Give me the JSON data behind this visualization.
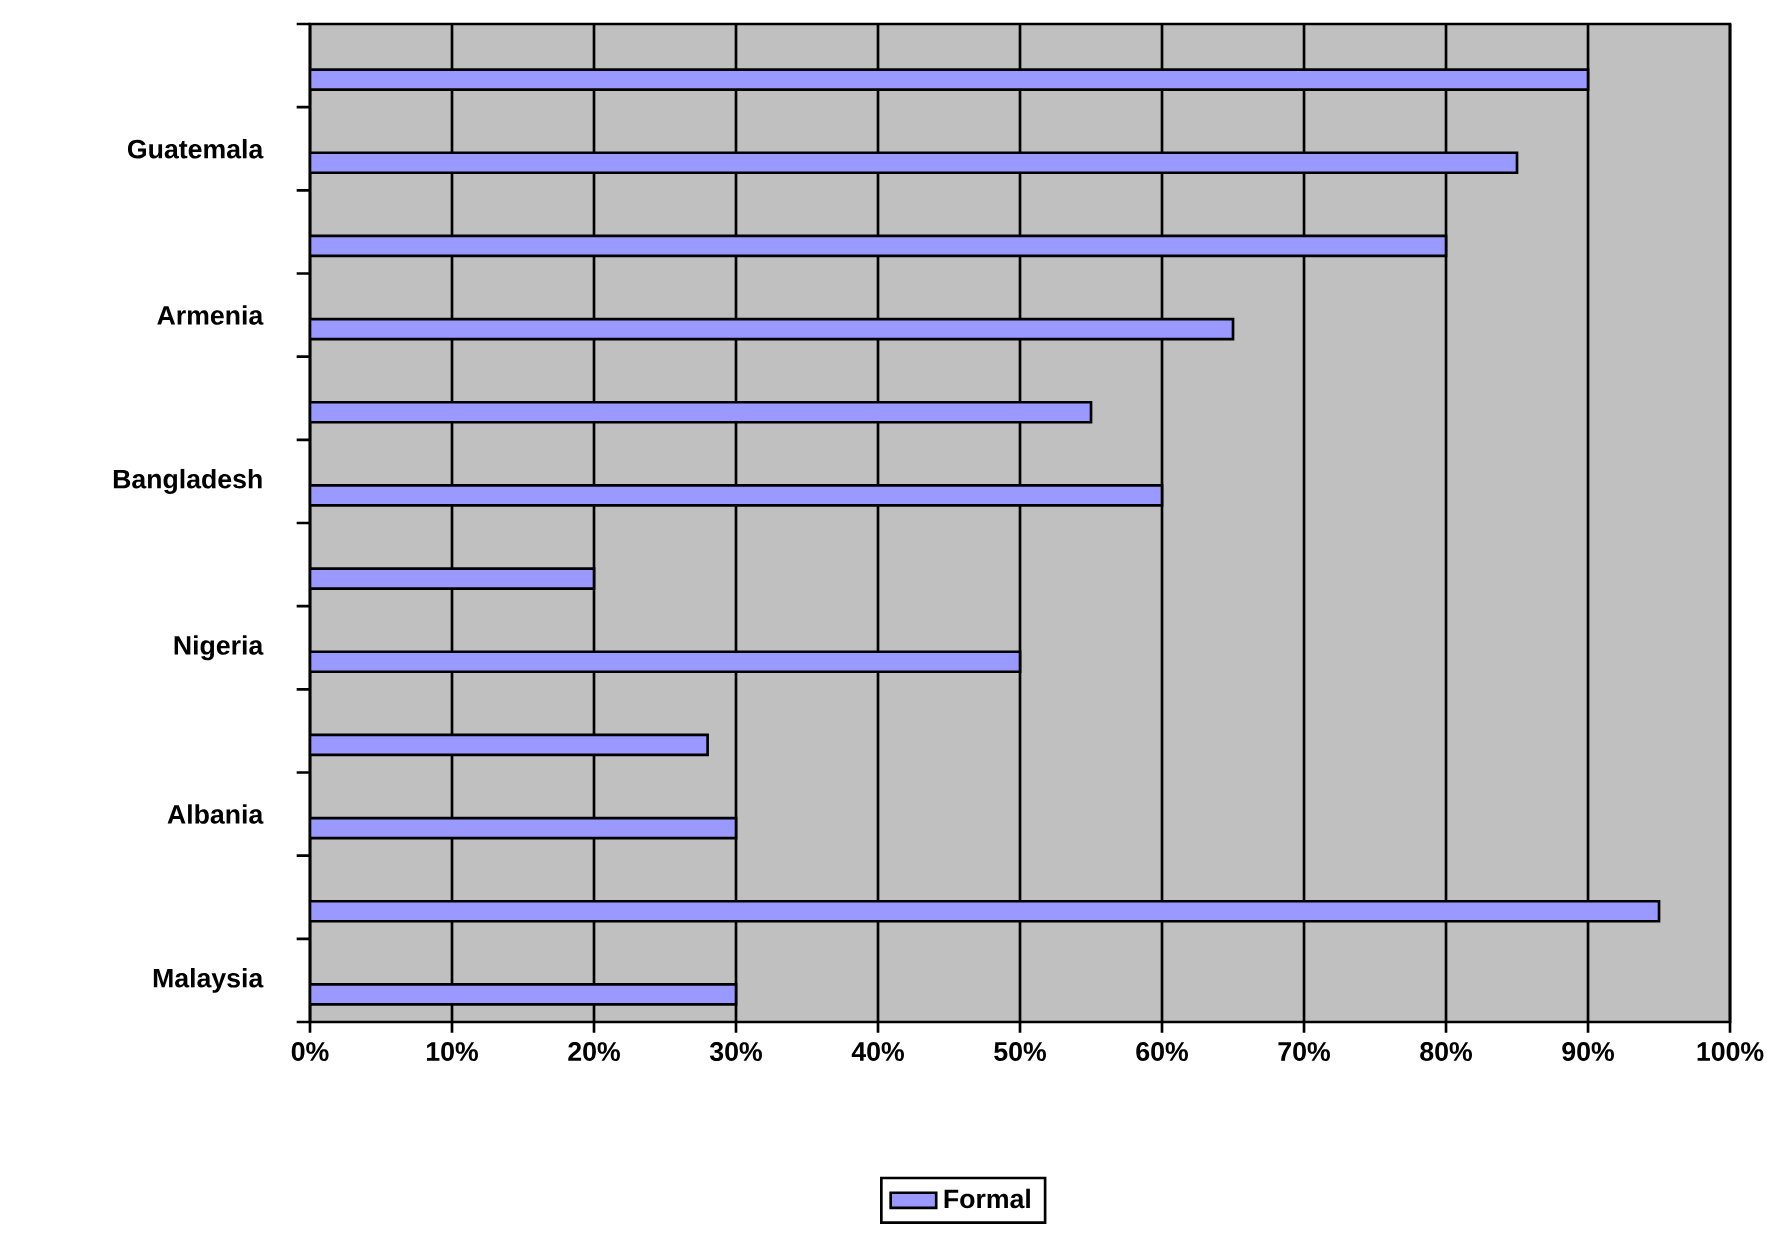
{
  "chart_data": {
    "type": "bar",
    "orientation": "horizontal",
    "categories": [
      null,
      "Guatemala",
      null,
      "Armenia",
      null,
      "Bangladesh",
      null,
      "Nigeria",
      null,
      "Albania",
      null,
      "Malaysia"
    ],
    "series": [
      {
        "name": "Formal",
        "color": "#9999ff",
        "values": [
          90,
          85,
          80,
          65,
          55,
          60,
          20,
          50,
          28,
          30,
          95,
          30
        ]
      }
    ],
    "xlim": [
      0,
      100
    ],
    "xticks": [
      {
        "value": 0,
        "label": "0%"
      },
      {
        "value": 10,
        "label": "10%"
      },
      {
        "value": 20,
        "label": "20%"
      },
      {
        "value": 30,
        "label": "30%"
      },
      {
        "value": 40,
        "label": "40%"
      },
      {
        "value": 50,
        "label": "50%"
      },
      {
        "value": 60,
        "label": "60%"
      },
      {
        "value": 70,
        "label": "70%"
      },
      {
        "value": 80,
        "label": "80%"
      },
      {
        "value": 90,
        "label": "90%"
      },
      {
        "value": 100,
        "label": "100%"
      }
    ],
    "grid": "x",
    "legend": "bottom"
  }
}
